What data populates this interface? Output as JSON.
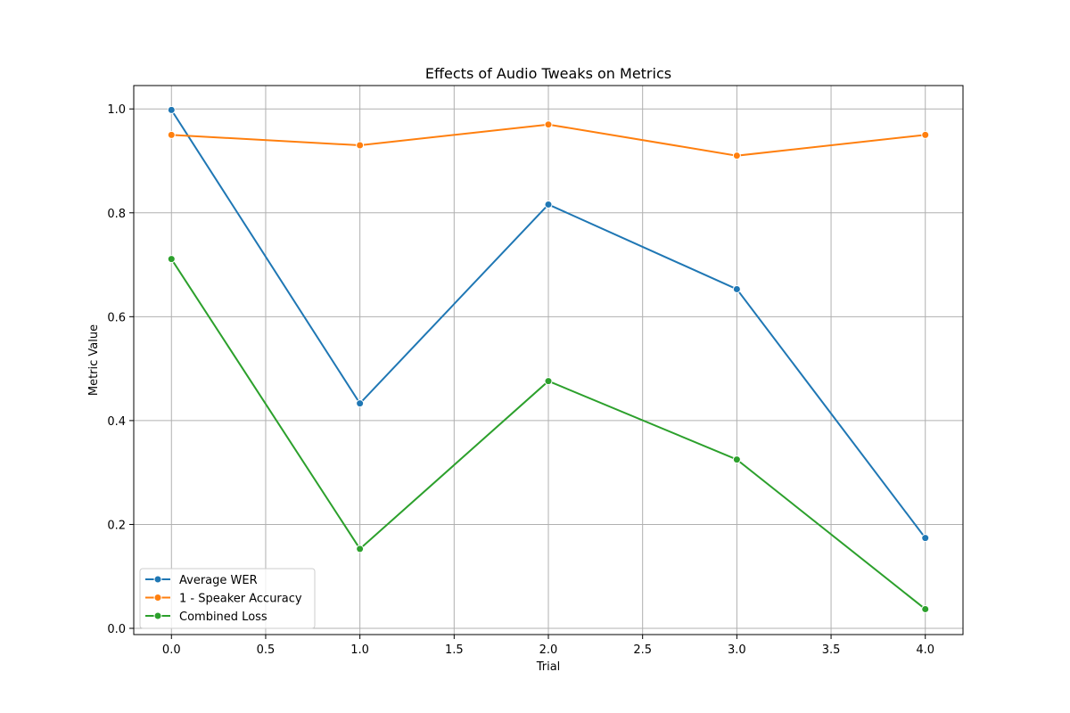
{
  "chart_data": {
    "type": "line",
    "title": "Effects of Audio Tweaks on Metrics",
    "xlabel": "Trial",
    "ylabel": "Metric Value",
    "x": [
      0,
      1,
      2,
      3,
      4
    ],
    "xlim": [
      -0.2,
      4.2
    ],
    "ylim": [
      -0.012,
      1.045
    ],
    "xticks": [
      "0.0",
      "0.5",
      "1.0",
      "1.5",
      "2.0",
      "2.5",
      "3.0",
      "3.5",
      "4.0"
    ],
    "yticks": [
      "0.0",
      "0.2",
      "0.4",
      "0.6",
      "0.8",
      "1.0"
    ],
    "grid": true,
    "legend_position": "lower-left",
    "series": [
      {
        "name": "Average WER",
        "color": "#1f77b4",
        "values": [
          0.998,
          0.433,
          0.816,
          0.653,
          0.174
        ]
      },
      {
        "name": "1 - Speaker Accuracy",
        "color": "#ff7f0e",
        "values": [
          0.95,
          0.93,
          0.97,
          0.91,
          0.95
        ]
      },
      {
        "name": "Combined Loss",
        "color": "#2ca02c",
        "values": [
          0.711,
          0.153,
          0.476,
          0.325,
          0.037
        ]
      }
    ]
  }
}
